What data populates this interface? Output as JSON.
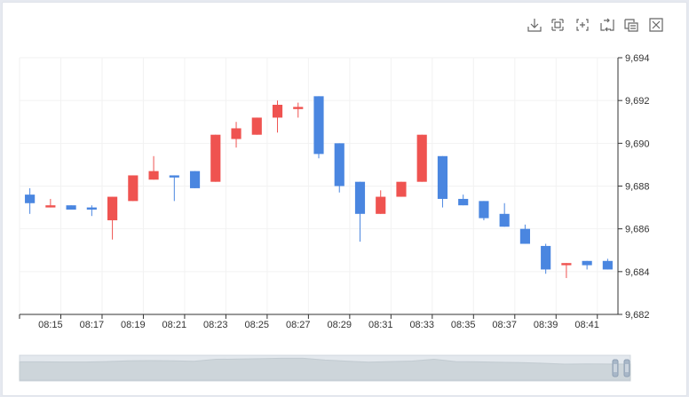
{
  "toolbar": {
    "icons": [
      "download-icon",
      "zoom-select-icon",
      "zoom-reset-icon",
      "restore-icon",
      "data-view-icon",
      "fullscreen-icon"
    ]
  },
  "colors": {
    "up": "#ef5350",
    "down": "#4a86e0",
    "grid": "#f2f2f2",
    "axis": "#333333",
    "slider_bg": "#e7ecee",
    "slider_area": "#d3d8dc"
  },
  "chart_data": {
    "type": "candlestick",
    "title": "",
    "xlabel": "",
    "ylabel": "",
    "ylim": [
      9682,
      9694
    ],
    "y_ticks": [
      "9,682",
      "9,684",
      "9,686",
      "9,688",
      "9,690",
      "9,692",
      "9,694"
    ],
    "x_tick_labels": [
      "08:15",
      "08:17",
      "08:19",
      "08:21",
      "08:23",
      "08:25",
      "08:27",
      "08:29",
      "08:31",
      "08:33",
      "08:35",
      "08:37",
      "08:39",
      "08:41"
    ],
    "grid": true,
    "y_axis_position": "right",
    "candles": [
      {
        "time": "08:14",
        "open": 9687.6,
        "close": 9687.2,
        "high": 9687.9,
        "low": 9686.7
      },
      {
        "time": "08:15",
        "open": 9687.0,
        "close": 9687.1,
        "high": 9687.4,
        "low": 9687.0
      },
      {
        "time": "08:16",
        "open": 9687.1,
        "close": 9686.9,
        "high": 9687.1,
        "low": 9686.9
      },
      {
        "time": "08:17",
        "open": 9687.0,
        "close": 9686.9,
        "high": 9687.1,
        "low": 9686.6
      },
      {
        "time": "08:18",
        "open": 9686.4,
        "close": 9687.5,
        "high": 9687.5,
        "low": 9685.5
      },
      {
        "time": "08:19",
        "open": 9687.3,
        "close": 9688.5,
        "high": 9688.5,
        "low": 9687.3
      },
      {
        "time": "08:20",
        "open": 9688.3,
        "close": 9688.7,
        "high": 9689.4,
        "low": 9688.3
      },
      {
        "time": "08:21",
        "open": 9688.5,
        "close": 9688.4,
        "high": 9688.5,
        "low": 9687.3
      },
      {
        "time": "08:22",
        "open": 9688.7,
        "close": 9687.9,
        "high": 9688.7,
        "low": 9687.9
      },
      {
        "time": "08:23",
        "open": 9688.2,
        "close": 9690.4,
        "high": 9690.4,
        "low": 9688.2
      },
      {
        "time": "08:24",
        "open": 9690.2,
        "close": 9690.7,
        "high": 9691.0,
        "low": 9689.8
      },
      {
        "time": "08:25",
        "open": 9690.4,
        "close": 9691.2,
        "high": 9691.2,
        "low": 9690.4
      },
      {
        "time": "08:26",
        "open": 9691.2,
        "close": 9691.8,
        "high": 9692.0,
        "low": 9690.5
      },
      {
        "time": "08:27",
        "open": 9691.6,
        "close": 9691.7,
        "high": 9691.9,
        "low": 9691.2
      },
      {
        "time": "08:28",
        "open": 9692.2,
        "close": 9689.5,
        "high": 9692.2,
        "low": 9689.3
      },
      {
        "time": "08:29",
        "open": 9690.0,
        "close": 9688.0,
        "high": 9690.0,
        "low": 9687.7
      },
      {
        "time": "08:30",
        "open": 9688.2,
        "close": 9686.7,
        "high": 9688.2,
        "low": 9685.4
      },
      {
        "time": "08:31",
        "open": 9686.7,
        "close": 9687.5,
        "high": 9687.8,
        "low": 9686.7
      },
      {
        "time": "08:32",
        "open": 9687.5,
        "close": 9688.2,
        "high": 9688.2,
        "low": 9687.5
      },
      {
        "time": "08:33",
        "open": 9688.2,
        "close": 9690.4,
        "high": 9690.4,
        "low": 9688.2
      },
      {
        "time": "08:34",
        "open": 9689.4,
        "close": 9687.4,
        "high": 9689.4,
        "low": 9687.0
      },
      {
        "time": "08:35",
        "open": 9687.4,
        "close": 9687.1,
        "high": 9687.6,
        "low": 9687.1
      },
      {
        "time": "08:36",
        "open": 9687.3,
        "close": 9686.5,
        "high": 9687.3,
        "low": 9686.4
      },
      {
        "time": "08:37",
        "open": 9686.7,
        "close": 9686.1,
        "high": 9687.2,
        "low": 9686.1
      },
      {
        "time": "08:38",
        "open": 9686.0,
        "close": 9685.3,
        "high": 9686.2,
        "low": 9685.3
      },
      {
        "time": "08:39",
        "open": 9685.2,
        "close": 9684.1,
        "high": 9685.3,
        "low": 9683.9
      },
      {
        "time": "08:40",
        "open": 9684.3,
        "close": 9684.4,
        "high": 9684.4,
        "low": 9683.7
      },
      {
        "time": "08:41",
        "open": 9684.5,
        "close": 9684.3,
        "high": 9684.5,
        "low": 9684.1
      },
      {
        "time": "08:42",
        "open": 9684.5,
        "close": 9684.1,
        "high": 9684.6,
        "low": 9684.1
      }
    ],
    "zoom_slider": {
      "start_percent": 0,
      "end_percent": 100
    }
  }
}
